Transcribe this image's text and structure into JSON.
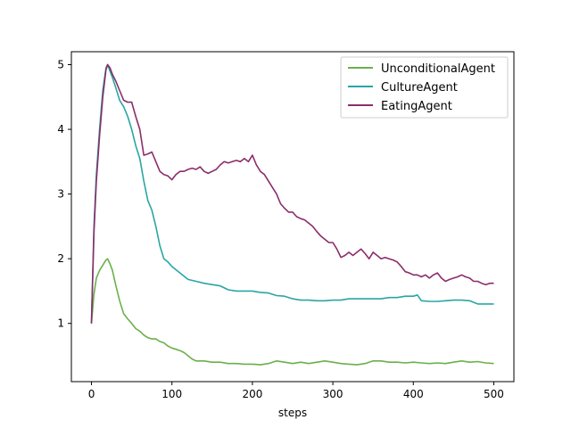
{
  "chart_data": {
    "type": "line",
    "title": "",
    "xlabel": "steps",
    "ylabel": "",
    "xlim": [
      -25,
      525
    ],
    "ylim": [
      0.1,
      5.2
    ],
    "x_ticks": [
      0,
      100,
      200,
      300,
      400,
      500
    ],
    "y_ticks": [
      1,
      2,
      3,
      4,
      5
    ],
    "grid": false,
    "legend_position": "top-right",
    "series": [
      {
        "name": "UnconditionalAgent",
        "color": "#6ab04c",
        "x": [
          0,
          3,
          6,
          10,
          14,
          18,
          20,
          23,
          26,
          30,
          35,
          40,
          45,
          50,
          55,
          60,
          65,
          70,
          75,
          80,
          85,
          90,
          95,
          100,
          105,
          110,
          115,
          120,
          125,
          130,
          135,
          140,
          150,
          160,
          170,
          180,
          190,
          200,
          210,
          220,
          230,
          240,
          250,
          260,
          270,
          280,
          290,
          300,
          310,
          320,
          330,
          340,
          350,
          360,
          370,
          380,
          390,
          400,
          410,
          420,
          430,
          440,
          450,
          460,
          470,
          480,
          490,
          500
        ],
        "y": [
          1.0,
          1.45,
          1.7,
          1.82,
          1.9,
          1.98,
          2.0,
          1.92,
          1.82,
          1.6,
          1.35,
          1.15,
          1.07,
          1.0,
          0.92,
          0.88,
          0.82,
          0.78,
          0.76,
          0.76,
          0.72,
          0.7,
          0.65,
          0.62,
          0.6,
          0.58,
          0.55,
          0.5,
          0.45,
          0.42,
          0.42,
          0.42,
          0.4,
          0.4,
          0.38,
          0.38,
          0.37,
          0.37,
          0.36,
          0.38,
          0.42,
          0.4,
          0.38,
          0.4,
          0.38,
          0.4,
          0.42,
          0.4,
          0.38,
          0.37,
          0.36,
          0.38,
          0.42,
          0.42,
          0.4,
          0.4,
          0.39,
          0.4,
          0.39,
          0.38,
          0.39,
          0.38,
          0.4,
          0.42,
          0.4,
          0.41,
          0.39,
          0.38
        ]
      },
      {
        "name": "CultureAgent",
        "color": "#2aa5a5",
        "x": [
          0,
          3,
          6,
          10,
          14,
          18,
          20,
          23,
          26,
          30,
          35,
          40,
          45,
          50,
          55,
          60,
          65,
          70,
          75,
          80,
          85,
          90,
          95,
          100,
          110,
          120,
          130,
          140,
          150,
          160,
          170,
          180,
          190,
          200,
          210,
          220,
          230,
          240,
          250,
          260,
          270,
          280,
          290,
          300,
          310,
          320,
          330,
          340,
          350,
          360,
          370,
          380,
          390,
          400,
          405,
          410,
          420,
          430,
          440,
          450,
          460,
          470,
          480,
          490,
          500
        ],
        "y": [
          1.0,
          2.5,
          3.3,
          4.0,
          4.6,
          4.95,
          5.0,
          4.9,
          4.8,
          4.65,
          4.45,
          4.35,
          4.2,
          4.0,
          3.75,
          3.55,
          3.2,
          2.9,
          2.75,
          2.5,
          2.2,
          2.0,
          1.95,
          1.88,
          1.78,
          1.68,
          1.65,
          1.62,
          1.6,
          1.58,
          1.52,
          1.5,
          1.5,
          1.5,
          1.48,
          1.47,
          1.43,
          1.42,
          1.38,
          1.36,
          1.36,
          1.35,
          1.35,
          1.36,
          1.36,
          1.38,
          1.38,
          1.38,
          1.38,
          1.38,
          1.4,
          1.4,
          1.42,
          1.42,
          1.44,
          1.35,
          1.34,
          1.34,
          1.35,
          1.36,
          1.36,
          1.35,
          1.3,
          1.3,
          1.3
        ]
      },
      {
        "name": "EatingAgent",
        "color": "#8b2d6a",
        "x": [
          0,
          3,
          6,
          10,
          14,
          18,
          20,
          23,
          26,
          30,
          35,
          40,
          45,
          50,
          55,
          60,
          65,
          70,
          75,
          80,
          85,
          90,
          95,
          100,
          105,
          110,
          115,
          120,
          125,
          130,
          135,
          140,
          145,
          150,
          155,
          160,
          165,
          170,
          175,
          180,
          185,
          190,
          195,
          200,
          205,
          210,
          215,
          220,
          225,
          230,
          235,
          240,
          245,
          250,
          255,
          260,
          265,
          270,
          275,
          280,
          285,
          290,
          295,
          300,
          305,
          310,
          315,
          320,
          325,
          330,
          335,
          340,
          345,
          350,
          355,
          360,
          365,
          370,
          375,
          380,
          385,
          390,
          395,
          400,
          405,
          410,
          415,
          420,
          425,
          430,
          435,
          440,
          445,
          450,
          455,
          460,
          465,
          470,
          475,
          480,
          485,
          490,
          495,
          500
        ],
        "y": [
          1.0,
          2.4,
          3.2,
          3.9,
          4.5,
          4.92,
          5.0,
          4.95,
          4.85,
          4.75,
          4.6,
          4.45,
          4.42,
          4.42,
          4.2,
          4.0,
          3.6,
          3.62,
          3.65,
          3.5,
          3.35,
          3.3,
          3.28,
          3.22,
          3.3,
          3.35,
          3.35,
          3.38,
          3.4,
          3.38,
          3.42,
          3.35,
          3.32,
          3.35,
          3.38,
          3.45,
          3.5,
          3.48,
          3.5,
          3.52,
          3.5,
          3.55,
          3.5,
          3.6,
          3.45,
          3.35,
          3.3,
          3.2,
          3.1,
          3.0,
          2.85,
          2.78,
          2.72,
          2.72,
          2.65,
          2.62,
          2.6,
          2.55,
          2.5,
          2.42,
          2.35,
          2.3,
          2.25,
          2.25,
          2.15,
          2.02,
          2.05,
          2.1,
          2.05,
          2.1,
          2.15,
          2.08,
          2.0,
          2.1,
          2.05,
          2.0,
          2.02,
          2.0,
          1.98,
          1.95,
          1.88,
          1.8,
          1.78,
          1.75,
          1.75,
          1.72,
          1.75,
          1.7,
          1.75,
          1.78,
          1.7,
          1.65,
          1.68,
          1.7,
          1.72,
          1.75,
          1.72,
          1.7,
          1.65,
          1.65,
          1.62,
          1.6,
          1.62,
          1.62
        ]
      }
    ]
  }
}
